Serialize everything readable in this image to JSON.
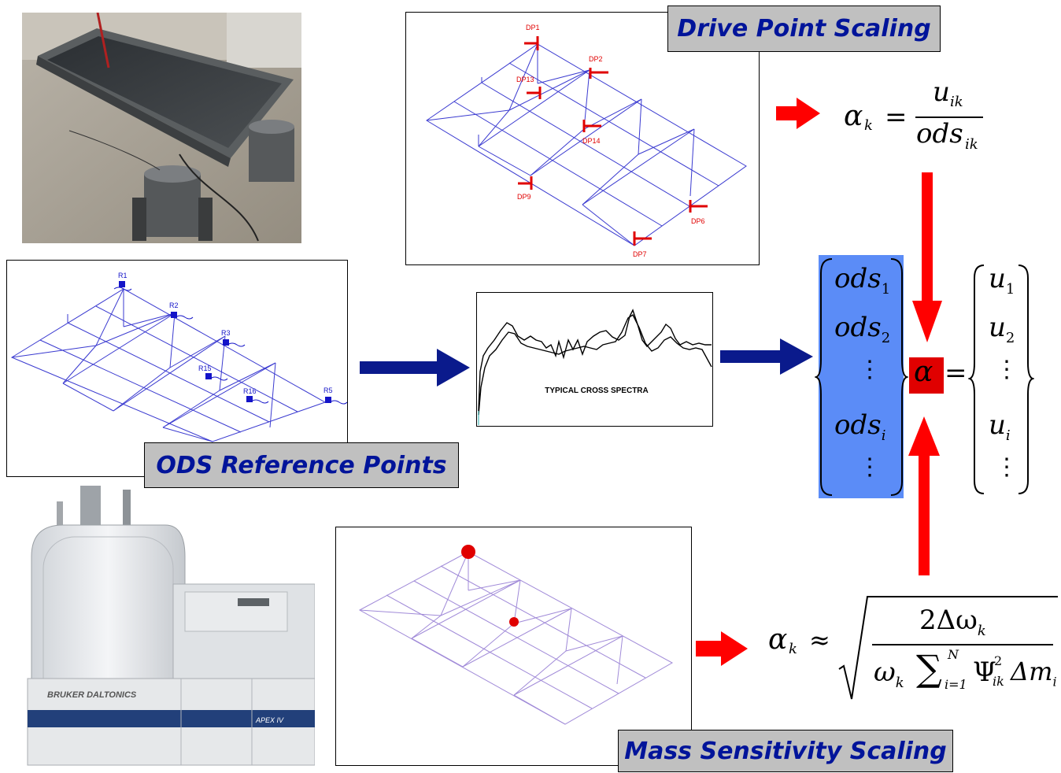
{
  "banners": {
    "drive_point": "Drive Point Scaling",
    "ods_reference": "ODS Reference Points",
    "mass_sensitivity": "Mass Sensitivity Scaling"
  },
  "drive_points": [
    "DP1",
    "DP2",
    "DP13",
    "DP14",
    "DP9",
    "DP6",
    "DP7"
  ],
  "reference_points": [
    "R1",
    "R2",
    "R3",
    "R15",
    "R16",
    "R5"
  ],
  "spectra_label": "TYPICAL CROSS SPECTRA",
  "photos": {
    "instrument_brand": "BRUKER DALTONICS",
    "instrument_model": "APEX IV"
  },
  "equations": {
    "drive_alpha": "α",
    "drive_k": "k",
    "drive_num": "u",
    "drive_num_sub": "ik",
    "drive_den": "ods",
    "drive_den_sub": "ik",
    "ods_vector": [
      {
        "base": "ods",
        "sub": "1"
      },
      {
        "base": "ods",
        "sub": "2"
      },
      {
        "base": "⋮",
        "sub": ""
      },
      {
        "base": "ods",
        "sub": "i"
      },
      {
        "base": "⋮",
        "sub": ""
      }
    ],
    "u_vector": [
      {
        "base": "u",
        "sub": "1"
      },
      {
        "base": "u",
        "sub": "2"
      },
      {
        "base": "⋮",
        "sub": ""
      },
      {
        "base": "u",
        "sub": "i"
      },
      {
        "base": "⋮",
        "sub": ""
      }
    ],
    "alpha": "α",
    "equals": "=",
    "mass_approx": "≈",
    "mass_num": "2Δω",
    "mass_num_sub": "k",
    "mass_den_omega": "ω",
    "mass_den_k": "k",
    "mass_sum": "∑",
    "mass_sum_top": "N",
    "mass_sum_bottom": "i=1",
    "mass_psi": "Ψ",
    "mass_psi_sup": "2",
    "mass_psi_sub": "ik",
    "mass_dm": "Δm",
    "mass_dm_sub": "i"
  },
  "colors": {
    "banner_text": "#00149a",
    "banner_bg": "#c0c0c0",
    "red_arrow": "#ff0000",
    "blue_arrow": "#0a1a8c",
    "vector_highlight": "#5b8cf7",
    "mesh_blue": "#3a3ad0"
  }
}
